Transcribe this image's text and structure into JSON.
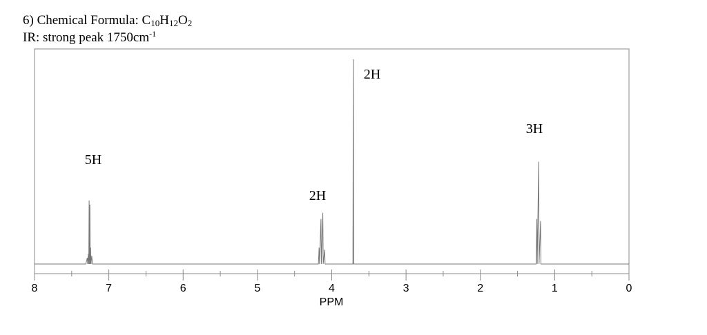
{
  "chart_data": {
    "type": "line",
    "title_parts": [
      {
        "text": "6) Chemical Formula: C",
        "sub": false
      },
      {
        "text": "10",
        "sub": true
      },
      {
        "text": "H",
        "sub": false
      },
      {
        "text": "12",
        "sub": true
      },
      {
        "text": "O",
        "sub": false
      },
      {
        "text": "2",
        "sub": true
      }
    ],
    "subtitle_parts": [
      {
        "text": "IR: strong peak 1750cm",
        "sup": false
      },
      {
        "text": "-1",
        "sup": true
      }
    ],
    "x_label": "PPM",
    "xlim": [
      8,
      0
    ],
    "xticks": [
      8,
      7,
      6,
      5,
      4,
      3,
      2,
      1,
      0
    ],
    "minor_xticks": [
      7.5,
      6.5,
      5.5,
      4.5,
      3.5,
      2.5,
      1.5,
      0.5
    ],
    "ylim": [
      0,
      100
    ],
    "color": "#777777",
    "x": [
      8,
      7.31,
      7.29,
      7.285,
      7.275,
      7.27,
      7.265,
      7.26,
      7.255,
      7.25,
      7.245,
      7.24,
      7.23,
      7.22,
      4.18,
      4.17,
      4.165,
      4.145,
      4.14,
      4.12,
      4.115,
      4.095,
      4.09,
      3.715,
      3.71,
      3.705,
      1.25,
      1.24,
      1.235,
      1.215,
      1.21,
      1.19,
      1.185,
      0
    ],
    "values": [
      0,
      0,
      3,
      0,
      5,
      0,
      31,
      0,
      29,
      0,
      8,
      0,
      4,
      0,
      0,
      8,
      0,
      22,
      0,
      25,
      0,
      7,
      0,
      0,
      100,
      0,
      0,
      22,
      0,
      50,
      0,
      21,
      0,
      0
    ],
    "annotations": [
      "5H",
      "2H",
      "2H",
      "3H"
    ]
  }
}
